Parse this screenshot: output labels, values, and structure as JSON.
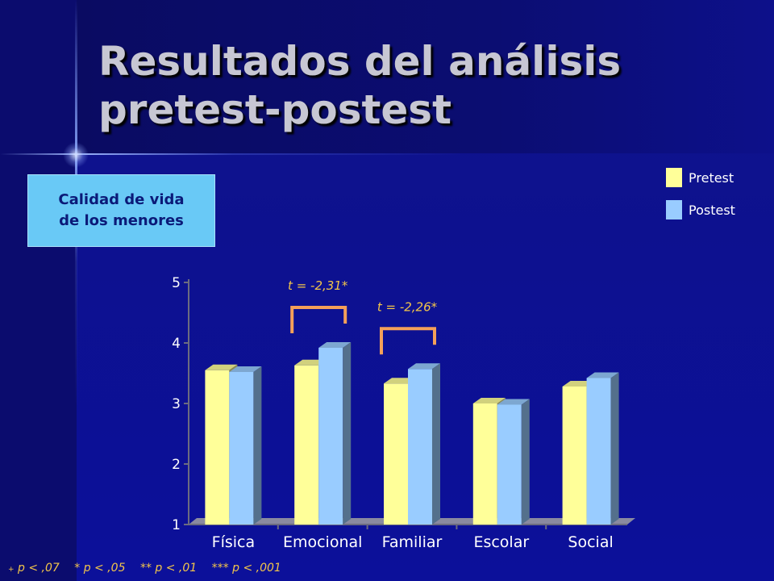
{
  "slide": {
    "title": "Resultados del análisis pretest-postest",
    "subject_label": "Calidad de vida\nde los menores",
    "footnote": [
      {
        "marker": "+",
        "text": "p < ,07"
      },
      {
        "marker": "*",
        "text": "p < ,05"
      },
      {
        "marker": "**",
        "text": "p < ,01"
      },
      {
        "marker": "***",
        "text": "p < ,001"
      }
    ]
  },
  "colors": {
    "pretest": "#ffff99",
    "postest": "#99ccff",
    "bracket": "#f4a05a",
    "annotation": "#f2c54a",
    "axis": "#6b6b80",
    "floor": "#8a8aa0"
  },
  "chart_data": {
    "type": "bar",
    "categories": [
      "Física",
      "Emocional",
      "Familiar",
      "Escolar",
      "Social"
    ],
    "series": [
      {
        "name": "Pretest",
        "values": [
          3.55,
          3.63,
          3.33,
          3.0,
          3.28
        ]
      },
      {
        "name": "Postest",
        "values": [
          3.52,
          3.92,
          3.57,
          2.98,
          3.42
        ]
      }
    ],
    "y_ticks": [
      "1",
      "2",
      "3",
      "4",
      "5"
    ],
    "ylim": [
      1,
      5
    ],
    "legend_position": "top-right",
    "grid": false,
    "annotations": [
      {
        "category": "Emocional",
        "text": "t = -2,31*"
      },
      {
        "category": "Familiar",
        "text": "t = -2,26*"
      }
    ]
  }
}
